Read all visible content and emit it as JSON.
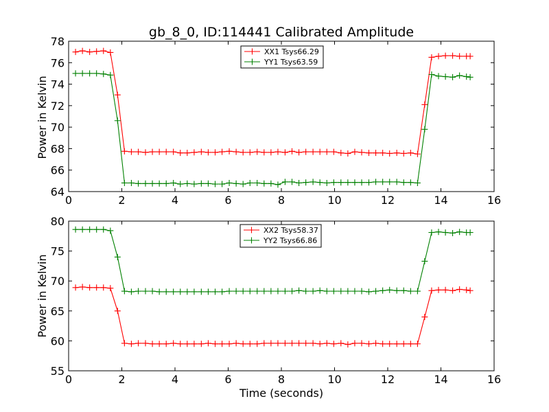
{
  "chart_data": [
    {
      "type": "line",
      "title": "gb_8_0, ID:114441 Calibrated Amplitude",
      "xlabel": "",
      "ylabel": "Power in Kelvin",
      "xlim": [
        0,
        16
      ],
      "ylim": [
        64,
        78
      ],
      "xticks": [
        "0",
        "2",
        "4",
        "6",
        "8",
        "10",
        "12",
        "14",
        "16"
      ],
      "yticks": [
        "64",
        "66",
        "68",
        "70",
        "72",
        "74",
        "76",
        "78"
      ],
      "legend_position": "top-center",
      "grid": false,
      "x": [
        0.26,
        0.52,
        0.79,
        1.05,
        1.31,
        1.57,
        1.84,
        2.1,
        2.36,
        2.62,
        2.89,
        3.15,
        3.41,
        3.67,
        3.94,
        4.2,
        4.46,
        4.72,
        4.99,
        5.25,
        5.51,
        5.77,
        6.04,
        6.3,
        6.56,
        6.82,
        7.09,
        7.35,
        7.61,
        7.87,
        8.14,
        8.4,
        8.66,
        8.92,
        9.19,
        9.45,
        9.71,
        9.97,
        10.24,
        10.5,
        10.76,
        11.02,
        11.29,
        11.55,
        11.81,
        12.07,
        12.34,
        12.6,
        12.86,
        13.12,
        13.39,
        13.65,
        13.91,
        14.17,
        14.44,
        14.7,
        14.96,
        15.1
      ],
      "series": [
        {
          "name": "XX1 Tsys66.29",
          "color": "#ff0000",
          "values": [
            77.0,
            77.1,
            77.0,
            77.05,
            77.1,
            76.95,
            73.0,
            67.75,
            67.7,
            67.7,
            67.65,
            67.7,
            67.7,
            67.7,
            67.7,
            67.6,
            67.6,
            67.65,
            67.7,
            67.65,
            67.65,
            67.7,
            67.75,
            67.7,
            67.65,
            67.65,
            67.7,
            67.65,
            67.65,
            67.7,
            67.65,
            67.75,
            67.65,
            67.7,
            67.7,
            67.7,
            67.7,
            67.7,
            67.6,
            67.55,
            67.7,
            67.65,
            67.6,
            67.6,
            67.6,
            67.55,
            67.6,
            67.55,
            67.6,
            67.5,
            72.1,
            76.5,
            76.6,
            76.65,
            76.65,
            76.6,
            76.6,
            76.6
          ]
        },
        {
          "name": "YY1 Tsys63.59",
          "color": "#008000",
          "values": [
            75.0,
            75.0,
            75.0,
            75.0,
            74.95,
            74.85,
            70.6,
            64.8,
            64.8,
            64.75,
            64.75,
            64.75,
            64.75,
            64.75,
            64.8,
            64.7,
            64.75,
            64.7,
            64.75,
            64.75,
            64.7,
            64.7,
            64.8,
            64.75,
            64.7,
            64.8,
            64.8,
            64.75,
            64.75,
            64.65,
            64.9,
            64.9,
            64.8,
            64.85,
            64.9,
            64.85,
            64.8,
            64.85,
            64.85,
            64.85,
            64.85,
            64.85,
            64.85,
            64.9,
            64.9,
            64.9,
            64.9,
            64.85,
            64.85,
            64.8,
            69.8,
            74.9,
            74.75,
            74.7,
            74.65,
            74.8,
            74.7,
            74.65
          ]
        }
      ]
    },
    {
      "type": "line",
      "title": "",
      "xlabel": "Time (seconds)",
      "ylabel": "Power in Kelvin",
      "xlim": [
        0,
        16
      ],
      "ylim": [
        55,
        80
      ],
      "xticks": [
        "0",
        "2",
        "4",
        "6",
        "8",
        "10",
        "12",
        "14",
        "16"
      ],
      "yticks": [
        "55",
        "60",
        "65",
        "70",
        "75",
        "80"
      ],
      "legend_position": "top-center",
      "grid": false,
      "x": [
        0.26,
        0.52,
        0.79,
        1.05,
        1.31,
        1.57,
        1.84,
        2.1,
        2.36,
        2.62,
        2.89,
        3.15,
        3.41,
        3.67,
        3.94,
        4.2,
        4.46,
        4.72,
        4.99,
        5.25,
        5.51,
        5.77,
        6.04,
        6.3,
        6.56,
        6.82,
        7.09,
        7.35,
        7.61,
        7.87,
        8.14,
        8.4,
        8.66,
        8.92,
        9.19,
        9.45,
        9.71,
        9.97,
        10.24,
        10.5,
        10.76,
        11.02,
        11.29,
        11.55,
        11.81,
        12.07,
        12.34,
        12.6,
        12.86,
        13.12,
        13.39,
        13.65,
        13.91,
        14.17,
        14.44,
        14.7,
        14.96,
        15.1
      ],
      "series": [
        {
          "name": "XX2 Tsys58.37",
          "color": "#ff0000",
          "values": [
            68.9,
            69.0,
            68.9,
            68.9,
            68.9,
            68.8,
            65.0,
            59.6,
            59.5,
            59.6,
            59.6,
            59.5,
            59.5,
            59.5,
            59.6,
            59.5,
            59.5,
            59.5,
            59.5,
            59.6,
            59.5,
            59.5,
            59.5,
            59.6,
            59.5,
            59.5,
            59.5,
            59.6,
            59.6,
            59.6,
            59.6,
            59.6,
            59.6,
            59.6,
            59.6,
            59.5,
            59.6,
            59.5,
            59.6,
            59.4,
            59.6,
            59.6,
            59.5,
            59.6,
            59.5,
            59.5,
            59.5,
            59.5,
            59.5,
            59.5,
            64.0,
            68.4,
            68.5,
            68.5,
            68.4,
            68.6,
            68.5,
            68.4
          ]
        },
        {
          "name": "YY2 Tsys66.86",
          "color": "#008000",
          "values": [
            78.6,
            78.6,
            78.6,
            78.6,
            78.6,
            78.4,
            74.0,
            68.3,
            68.2,
            68.3,
            68.3,
            68.3,
            68.2,
            68.2,
            68.2,
            68.2,
            68.2,
            68.2,
            68.2,
            68.2,
            68.2,
            68.2,
            68.3,
            68.3,
            68.3,
            68.3,
            68.3,
            68.3,
            68.3,
            68.3,
            68.3,
            68.3,
            68.4,
            68.3,
            68.3,
            68.4,
            68.3,
            68.3,
            68.3,
            68.3,
            68.3,
            68.3,
            68.2,
            68.3,
            68.4,
            68.5,
            68.4,
            68.4,
            68.3,
            68.3,
            73.3,
            78.1,
            78.2,
            78.1,
            78.0,
            78.2,
            78.1,
            78.1
          ]
        }
      ]
    }
  ]
}
